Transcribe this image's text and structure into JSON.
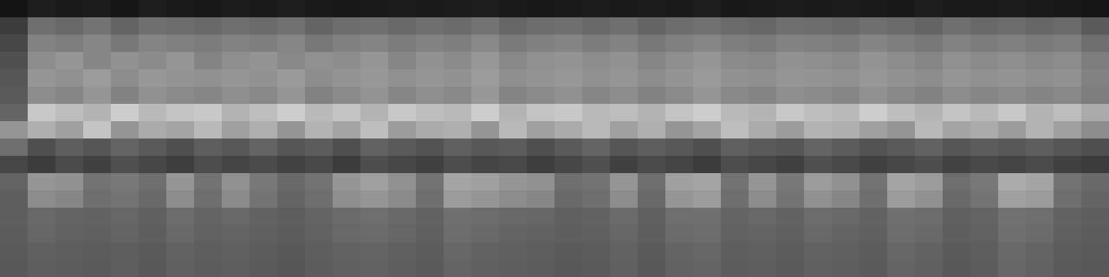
{
  "chart_data": {
    "type": "heatmap",
    "tick_labels": false,
    "color_range": [
      0,
      255
    ],
    "cells": [
      [
        20,
        30,
        25,
        28,
        22,
        30,
        26,
        24,
        28,
        25,
        30,
        27,
        24,
        26,
        29,
        25,
        28,
        30,
        26,
        24,
        27,
        29,
        25,
        28,
        26,
        30,
        24,
        27,
        29,
        25,
        28,
        26,
        24,
        30,
        27,
        25,
        28,
        26,
        24,
        22
      ],
      [
        60,
        110,
        105,
        115,
        100,
        112,
        108,
        104,
        110,
        106,
        114,
        100,
        108,
        112,
        104,
        110,
        106,
        116,
        102,
        108,
        112,
        104,
        110,
        100,
        108,
        114,
        106,
        102,
        110,
        108,
        104,
        112,
        106,
        100,
        110,
        104,
        108,
        102,
        106,
        90
      ],
      [
        70,
        130,
        125,
        135,
        120,
        132,
        128,
        124,
        130,
        126,
        134,
        120,
        128,
        132,
        124,
        130,
        126,
        136,
        122,
        128,
        132,
        124,
        130,
        120,
        128,
        134,
        126,
        122,
        130,
        128,
        124,
        132,
        126,
        120,
        130,
        124,
        128,
        122,
        126,
        110
      ],
      [
        80,
        140,
        150,
        135,
        145,
        138,
        150,
        132,
        142,
        148,
        136,
        144,
        140,
        150,
        134,
        146,
        138,
        152,
        136,
        144,
        148,
        140,
        146,
        134,
        142,
        150,
        138,
        136,
        146,
        142,
        138,
        148,
        140,
        134,
        144,
        138,
        142,
        136,
        140,
        125
      ],
      [
        85,
        150,
        145,
        155,
        140,
        152,
        148,
        144,
        150,
        146,
        154,
        140,
        148,
        152,
        144,
        150,
        146,
        156,
        142,
        148,
        152,
        144,
        150,
        140,
        148,
        154,
        146,
        142,
        150,
        148,
        144,
        152,
        146,
        140,
        150,
        144,
        148,
        142,
        146,
        130
      ],
      [
        90,
        140,
        135,
        150,
        130,
        145,
        138,
        134,
        142,
        136,
        150,
        130,
        138,
        148,
        134,
        142,
        136,
        152,
        132,
        138,
        146,
        134,
        140,
        130,
        138,
        150,
        136,
        132,
        142,
        138,
        134,
        146,
        136,
        130,
        140,
        134,
        138,
        132,
        136,
        125
      ],
      [
        100,
        200,
        190,
        180,
        205,
        185,
        195,
        200,
        180,
        190,
        205,
        185,
        195,
        180,
        200,
        190,
        185,
        205,
        180,
        195,
        200,
        185,
        190,
        180,
        195,
        205,
        185,
        180,
        200,
        190,
        185,
        205,
        190,
        180,
        195,
        185,
        200,
        180,
        190,
        170
      ],
      [
        150,
        175,
        160,
        195,
        150,
        170,
        165,
        185,
        160,
        175,
        150,
        180,
        165,
        190,
        155,
        170,
        175,
        150,
        185,
        160,
        170,
        185,
        160,
        175,
        150,
        165,
        190,
        170,
        155,
        180,
        175,
        160,
        150,
        185,
        165,
        170,
        155,
        180,
        160,
        140
      ],
      [
        110,
        80,
        95,
        85,
        100,
        90,
        80,
        95,
        88,
        100,
        85,
        92,
        80,
        98,
        90,
        84,
        96,
        88,
        92,
        80,
        90,
        100,
        85,
        94,
        88,
        80,
        96,
        90,
        85,
        100,
        92,
        84,
        90,
        98,
        86,
        92,
        88,
        95,
        85,
        80
      ],
      [
        70,
        60,
        75,
        65,
        80,
        70,
        62,
        76,
        68,
        74,
        66,
        72,
        60,
        78,
        70,
        64,
        76,
        68,
        72,
        62,
        70,
        80,
        65,
        74,
        68,
        60,
        76,
        70,
        64,
        80,
        72,
        64,
        70,
        78,
        66,
        72,
        68,
        75,
        65,
        60
      ],
      [
        100,
        150,
        145,
        115,
        120,
        110,
        150,
        115,
        145,
        120,
        105,
        115,
        150,
        160,
        145,
        115,
        165,
        160,
        150,
        145,
        110,
        115,
        150,
        110,
        160,
        165,
        115,
        150,
        120,
        155,
        145,
        115,
        165,
        155,
        110,
        120,
        170,
        165,
        115,
        105
      ],
      [
        95,
        140,
        135,
        110,
        115,
        105,
        140,
        110,
        138,
        115,
        100,
        110,
        142,
        150,
        138,
        110,
        155,
        150,
        140,
        135,
        105,
        110,
        140,
        105,
        150,
        155,
        110,
        140,
        115,
        145,
        135,
        110,
        155,
        145,
        105,
        115,
        160,
        155,
        110,
        100
      ],
      [
        95,
        105,
        100,
        98,
        102,
        96,
        108,
        100,
        104,
        98,
        94,
        100,
        106,
        110,
        104,
        98,
        112,
        108,
        104,
        102,
        96,
        98,
        106,
        96,
        110,
        112,
        100,
        104,
        98,
        108,
        104,
        98,
        112,
        108,
        96,
        100,
        114,
        110,
        98,
        95
      ],
      [
        92,
        102,
        98,
        96,
        100,
        94,
        104,
        98,
        100,
        96,
        92,
        98,
        104,
        106,
        102,
        96,
        108,
        104,
        100,
        98,
        94,
        96,
        102,
        94,
        106,
        108,
        98,
        100,
        96,
        104,
        100,
        96,
        108,
        104,
        94,
        98,
        110,
        106,
        96,
        92
      ],
      [
        90,
        96,
        94,
        92,
        95,
        90,
        98,
        94,
        96,
        92,
        88,
        94,
        98,
        100,
        96,
        92,
        102,
        98,
        96,
        94,
        90,
        92,
        98,
        90,
        100,
        102,
        94,
        96,
        92,
        98,
        96,
        92,
        102,
        98,
        90,
        94,
        104,
        100,
        92,
        90
      ],
      [
        88,
        94,
        92,
        90,
        93,
        88,
        96,
        92,
        94,
        90,
        86,
        92,
        96,
        98,
        94,
        90,
        100,
        96,
        94,
        92,
        88,
        90,
        96,
        88,
        98,
        100,
        92,
        94,
        90,
        96,
        94,
        90,
        100,
        96,
        88,
        92,
        102,
        98,
        90,
        88
      ]
    ]
  }
}
